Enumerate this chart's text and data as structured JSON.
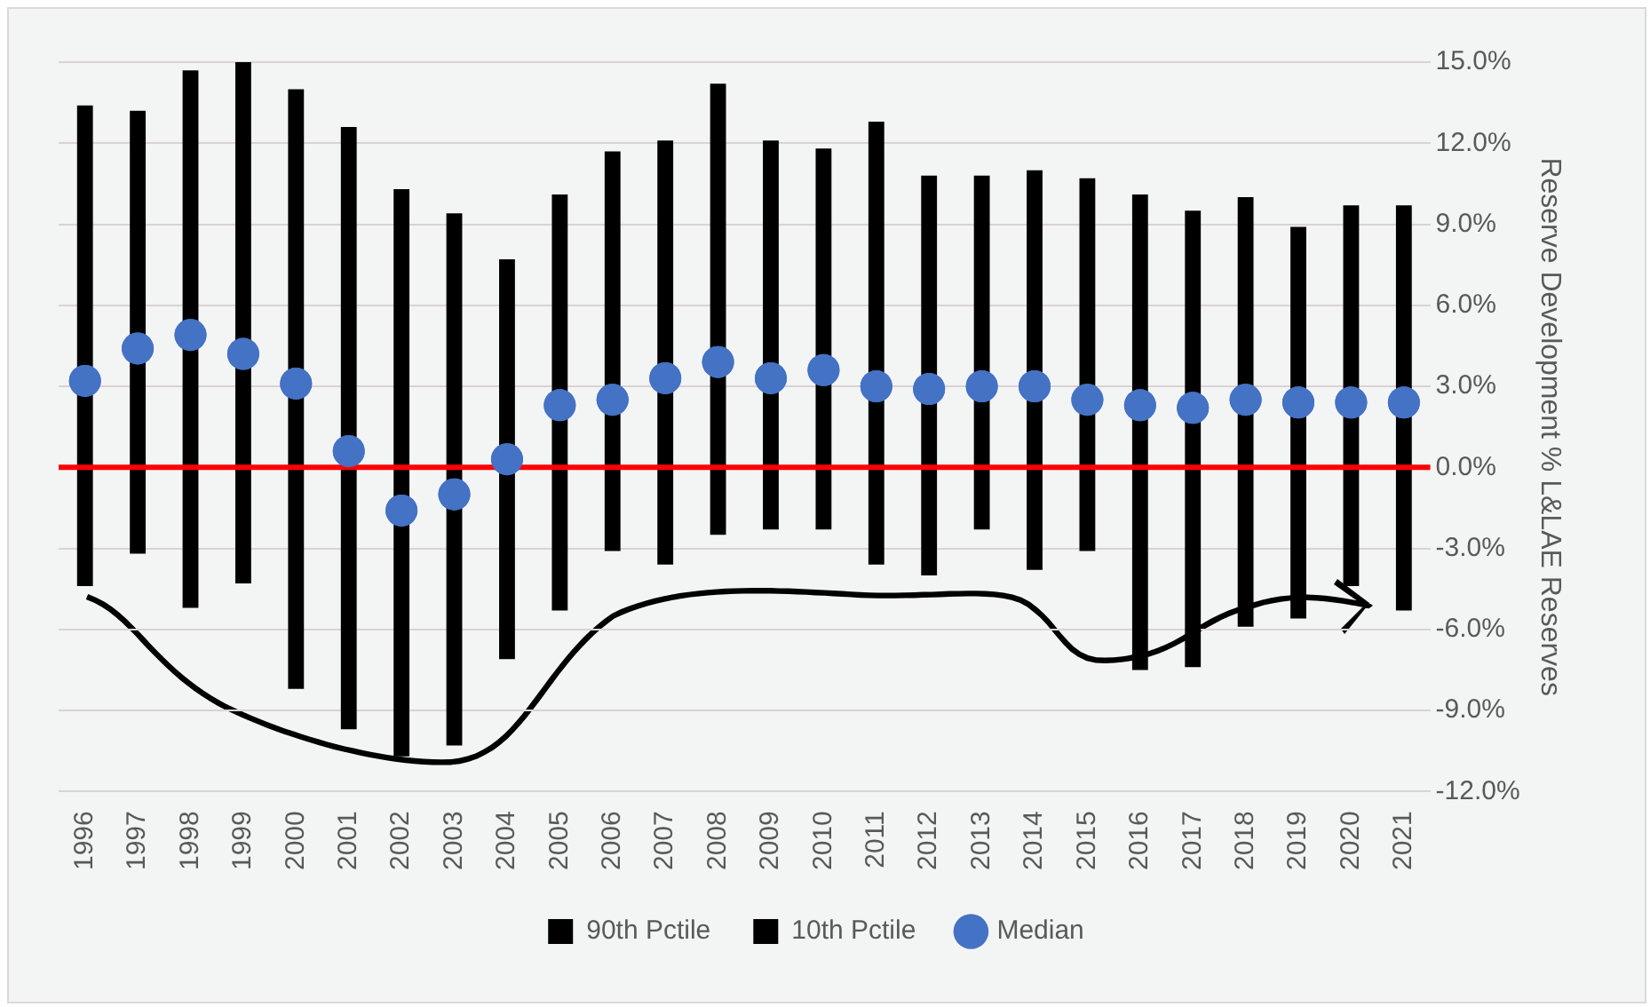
{
  "chart_data": {
    "type": "bar",
    "categories": [
      "1996",
      "1997",
      "1998",
      "1999",
      "2000",
      "2001",
      "2002",
      "2003",
      "2004",
      "2005",
      "2006",
      "2007",
      "2008",
      "2009",
      "2010",
      "2011",
      "2012",
      "2013",
      "2014",
      "2015",
      "2016",
      "2017",
      "2018",
      "2019",
      "2020",
      "2021"
    ],
    "series": [
      {
        "name": "90th Pctile",
        "color": "#000000",
        "values": [
          13.4,
          13.2,
          14.7,
          15.0,
          14.0,
          12.6,
          10.3,
          9.4,
          7.7,
          10.1,
          11.7,
          12.1,
          14.2,
          12.1,
          11.8,
          12.8,
          10.8,
          10.8,
          11.0,
          10.7,
          10.1,
          9.5,
          10.0,
          8.9,
          9.7,
          9.7
        ]
      },
      {
        "name": "10th Pctile",
        "color": "#000000",
        "values": [
          -4.4,
          -3.2,
          -5.2,
          -4.3,
          -8.2,
          -9.7,
          -10.7,
          -10.3,
          -7.1,
          -5.3,
          -3.1,
          -3.6,
          -2.5,
          -2.3,
          -2.3,
          -3.6,
          -4.0,
          -2.3,
          -3.8,
          -3.1,
          -7.5,
          -7.4,
          -5.9,
          -5.6,
          -4.4,
          -5.3
        ]
      },
      {
        "name": "Median",
        "type": "scatter",
        "color": "#4472c4",
        "marker": "circle",
        "values": [
          3.2,
          4.4,
          4.9,
          4.2,
          3.1,
          0.6,
          -1.6,
          -1.0,
          0.3,
          2.3,
          2.5,
          3.3,
          3.9,
          3.3,
          3.6,
          3.0,
          2.9,
          3.0,
          3.0,
          2.5,
          2.3,
          2.2,
          2.5,
          2.4,
          2.4,
          2.4
        ]
      }
    ],
    "ylabel": "Reserve Development % L&LAE Reserves",
    "ylim": [
      -12,
      15
    ],
    "yticks": [
      {
        "value": -12,
        "label": "-12.0%"
      },
      {
        "value": -9,
        "label": "-9.0%"
      },
      {
        "value": -6,
        "label": "-6.0%"
      },
      {
        "value": -3,
        "label": "-3.0%"
      },
      {
        "value": 0,
        "label": "0.0%"
      },
      {
        "value": 3,
        "label": "3.0%"
      },
      {
        "value": 6,
        "label": "6.0%"
      },
      {
        "value": 9,
        "label": "9.0%"
      },
      {
        "value": 12,
        "label": "12.0%"
      },
      {
        "value": 15,
        "label": "15.0%"
      }
    ],
    "grid": "y",
    "legend": "bottom",
    "stacked": true,
    "ref_lines": [
      {
        "axis": "y",
        "value": 0,
        "color": "#ff0000"
      }
    ]
  }
}
